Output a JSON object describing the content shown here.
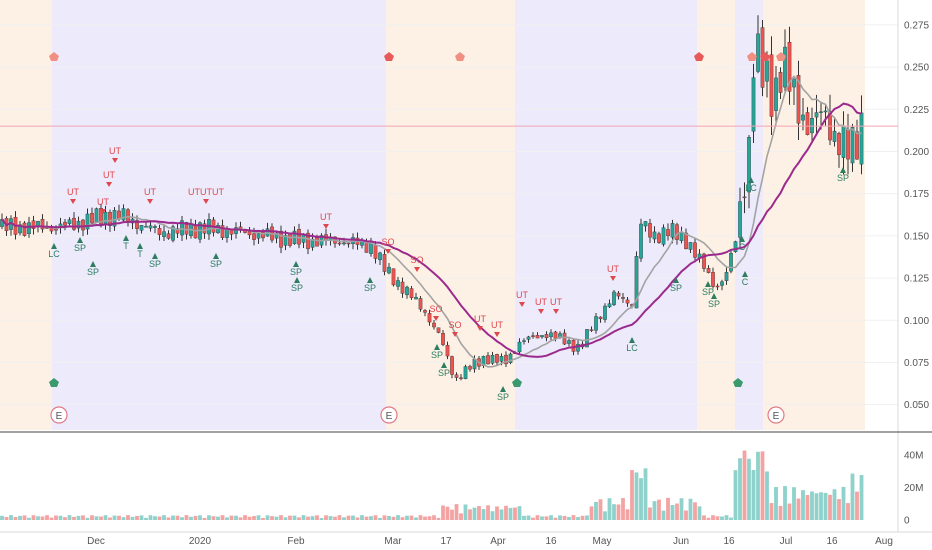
{
  "chart_data": {
    "type": "candlestick",
    "price_axis": {
      "ylim": [
        0.035,
        0.285
      ],
      "ticks": [
        0.275,
        0.25,
        0.225,
        0.2,
        0.175,
        0.15,
        0.125,
        0.1,
        0.075,
        0.05
      ]
    },
    "volume_axis": {
      "ylim": [
        0,
        48
      ],
      "ticks": [
        {
          "v": 40,
          "label": "40M"
        },
        {
          "v": 20,
          "label": "20M"
        },
        {
          "v": 0,
          "label": "0"
        }
      ]
    },
    "x_ticks": [
      "Dec",
      "2020",
      "Feb",
      "Mar",
      "17",
      "Apr",
      "16",
      "May",
      "Jun",
      "16",
      "Jul",
      "16",
      "Aug"
    ],
    "current_price_line": 0.215,
    "colors": {
      "up": "#26a69a",
      "down": "#ef5350",
      "ma_fast": "#a3a3a3",
      "ma_slow": "#9c2a8c",
      "zone_peach": "#fdf1e6",
      "zone_lavender": "#eceafb",
      "price_line": "#f2a5b2",
      "sig_up": "#e0474c",
      "sig_down": "#2e7d60",
      "earnings": "#e07a86",
      "axis_text": "#555555"
    },
    "signals_above": [
      {
        "label": "UT"
      },
      {
        "label": "UT"
      },
      {
        "label": "UT"
      },
      {
        "label": "UT"
      },
      {
        "label": "UT"
      },
      {
        "label": "UTUTUT"
      },
      {
        "label": "UT"
      },
      {
        "label": "SO"
      },
      {
        "label": "SO"
      },
      {
        "label": "SO"
      },
      {
        "label": "SO"
      },
      {
        "label": "UT"
      },
      {
        "label": "UT"
      },
      {
        "label": "UT"
      },
      {
        "label": "UT"
      },
      {
        "label": "UT"
      },
      {
        "label": "UT"
      }
    ],
    "signals_below": [
      {
        "label": "LC"
      },
      {
        "label": "SP"
      },
      {
        "label": "SP"
      },
      {
        "label": "T"
      },
      {
        "label": "T"
      },
      {
        "label": "SP"
      },
      {
        "label": "SP"
      },
      {
        "label": "SP"
      },
      {
        "label": "SP"
      },
      {
        "label": "SP"
      },
      {
        "label": "SP"
      },
      {
        "label": "SP"
      },
      {
        "label": "SP"
      },
      {
        "label": "SP"
      },
      {
        "label": "LC"
      },
      {
        "label": "SP"
      },
      {
        "label": "SP"
      },
      {
        "label": "C"
      },
      {
        "label": "C"
      },
      {
        "label": "LC"
      },
      {
        "label": "SP"
      }
    ],
    "earnings_labels": [
      "E",
      "E",
      "E"
    ]
  }
}
